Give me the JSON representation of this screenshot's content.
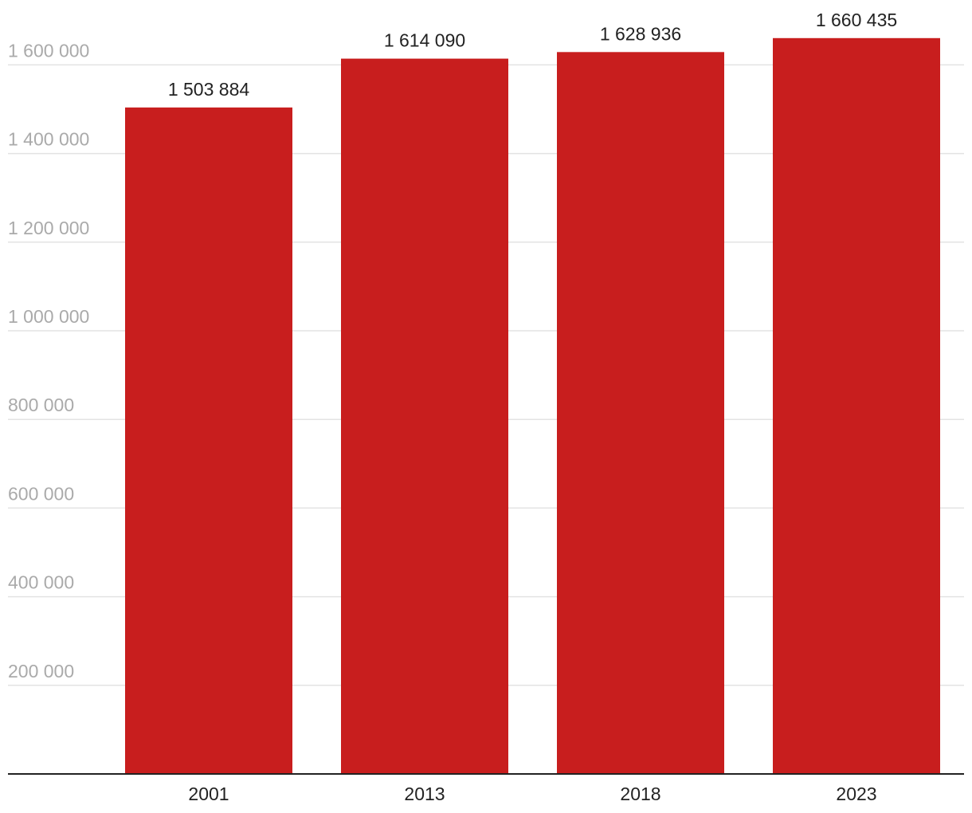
{
  "chart_data": {
    "type": "bar",
    "categories": [
      "2001",
      "2013",
      "2018",
      "2023"
    ],
    "values": [
      1503884,
      1614090,
      1628936,
      1660435
    ],
    "value_labels": [
      "1 503 884",
      "1 614 090",
      "1 628 936",
      "1 660 435"
    ],
    "y_ticks": [
      200000,
      400000,
      600000,
      800000,
      1000000,
      1200000,
      1400000,
      1600000
    ],
    "y_tick_labels": [
      "200 000",
      "400 000",
      "600 000",
      "800 000",
      "1 000 000",
      "1 200 000",
      "1 400 000",
      "1 600 000"
    ],
    "ylim": [
      0,
      1700000
    ],
    "grid": true,
    "bar_color": "#c81e1e",
    "title": "",
    "xlabel": "",
    "ylabel": ""
  }
}
